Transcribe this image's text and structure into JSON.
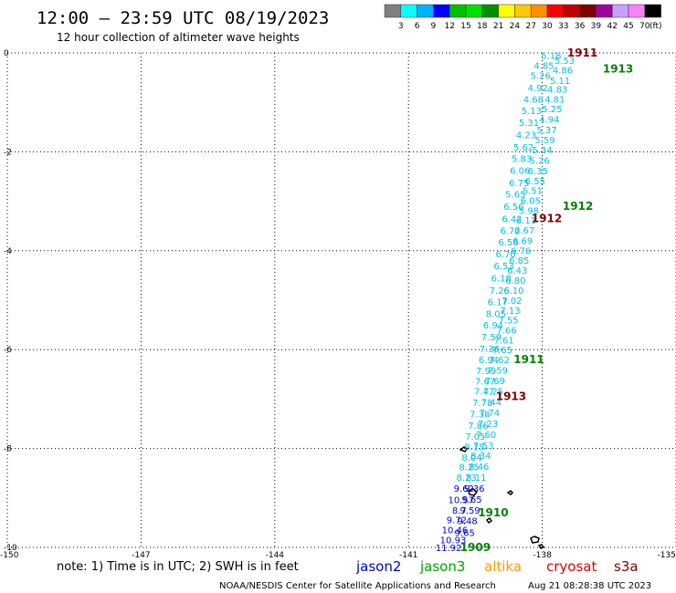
{
  "header": {
    "title": "12:00 — 23:59 UTC 08/19/2023",
    "subtitle": "12 hour collection of altimeter wave heights"
  },
  "colorbar": {
    "labels": [
      "3",
      "6",
      "9",
      "12",
      "15",
      "18",
      "21",
      "24",
      "27",
      "30",
      "33",
      "36",
      "39",
      "42",
      "45",
      "70"
    ],
    "unit": "(ft)",
    "colors": [
      "#808080",
      "#00ffff",
      "#00b0ff",
      "#0000ff",
      "#00c000",
      "#00e000",
      "#009000",
      "#ffff00",
      "#ffc800",
      "#ff9000",
      "#ff0000",
      "#c00000",
      "#800000",
      "#a000a0",
      "#c8a0ff",
      "#ff80ff",
      "#000000"
    ]
  },
  "footer": {
    "note": "note: 1) Time is in UTC; 2) SWH is in feet",
    "credit": "NOAA/NESDIS Center for Satellite Applications and Research",
    "timestamp": "Aug 21 08:28:38 UTC 2023"
  },
  "legend": [
    {
      "label": "jason2",
      "color": "#0000cc"
    },
    {
      "label": "jason3",
      "color": "#00a000"
    },
    {
      "label": "altika",
      "color": "#ff9900"
    },
    {
      "label": "cryosat",
      "color": "#dd0000"
    },
    {
      "label": "s3a",
      "color": "#800000"
    }
  ],
  "chart_data": {
    "type": "scatter",
    "x_ticks": [
      -150,
      -147,
      -144,
      -141,
      -138,
      -135
    ],
    "y_ticks": [
      0,
      -2,
      -4,
      -6,
      -8,
      -10
    ],
    "xlim": [
      -150,
      -135
    ],
    "ylim": [
      -10,
      0
    ],
    "grid": true,
    "point_color": "#00bfe0",
    "high_color": "#0000cc",
    "series": [
      {
        "values": [
          {
            "x": -137.8,
            "y": -0.05,
            "v": "5.18"
          },
          {
            "x": -137.96,
            "y": -0.25,
            "v": "4.85"
          },
          {
            "x": -138.04,
            "y": -0.45,
            "v": "5.26"
          },
          {
            "x": -138.1,
            "y": -0.7,
            "v": "4.92"
          },
          {
            "x": -138.2,
            "y": -0.93,
            "v": "4.68"
          },
          {
            "x": -138.24,
            "y": -1.16,
            "v": "5.13"
          },
          {
            "x": -138.3,
            "y": -1.4,
            "v": "5.31"
          },
          {
            "x": -138.36,
            "y": -1.65,
            "v": "4.23"
          },
          {
            "x": -138.42,
            "y": -1.9,
            "v": "5.62"
          },
          {
            "x": -138.46,
            "y": -2.13,
            "v": "5.83"
          },
          {
            "x": -138.5,
            "y": -2.37,
            "v": "6.06"
          },
          {
            "x": -138.52,
            "y": -2.62,
            "v": "6.75"
          },
          {
            "x": -138.6,
            "y": -2.85,
            "v": "5.65"
          },
          {
            "x": -138.64,
            "y": -3.1,
            "v": "6.56"
          },
          {
            "x": -138.68,
            "y": -3.35,
            "v": "6.42"
          },
          {
            "x": -138.72,
            "y": -3.59,
            "v": "6.72"
          },
          {
            "x": -138.76,
            "y": -3.82,
            "v": "6.56"
          },
          {
            "x": -138.82,
            "y": -4.06,
            "v": "6.70"
          },
          {
            "x": -138.86,
            "y": -4.3,
            "v": "6.53"
          },
          {
            "x": -138.92,
            "y": -4.55,
            "v": "6.18"
          },
          {
            "x": -138.96,
            "y": -4.8,
            "v": "7.26"
          },
          {
            "x": -139.0,
            "y": -5.03,
            "v": "6.17"
          },
          {
            "x": -139.04,
            "y": -5.27,
            "v": "8.05"
          },
          {
            "x": -139.1,
            "y": -5.5,
            "v": "6.94"
          },
          {
            "x": -139.14,
            "y": -5.74,
            "v": "7.59"
          },
          {
            "x": -139.18,
            "y": -5.98,
            "v": "7.36"
          },
          {
            "x": -139.2,
            "y": -6.2,
            "v": "6.94"
          },
          {
            "x": -139.26,
            "y": -6.42,
            "v": "7.99"
          },
          {
            "x": -139.28,
            "y": -6.63,
            "v": "7.67"
          },
          {
            "x": -139.3,
            "y": -6.84,
            "v": "7.47"
          },
          {
            "x": -139.34,
            "y": -7.07,
            "v": "7.78"
          },
          {
            "x": -139.4,
            "y": -7.3,
            "v": "7.38"
          },
          {
            "x": -139.44,
            "y": -7.53,
            "v": "7.86"
          },
          {
            "x": -139.5,
            "y": -7.75,
            "v": "7.05"
          },
          {
            "x": -139.52,
            "y": -7.96,
            "v": "8.15"
          },
          {
            "x": -139.58,
            "y": -8.17,
            "v": "8.04"
          },
          {
            "x": -139.64,
            "y": -8.37,
            "v": "8.25"
          },
          {
            "x": -139.7,
            "y": -8.58,
            "v": "8.23"
          },
          {
            "x": -139.76,
            "y": -8.8,
            "v": "9.62"
          },
          {
            "x": -139.82,
            "y": -9.03,
            "v": "10.57"
          },
          {
            "x": -139.86,
            "y": -9.24,
            "v": "8.7"
          },
          {
            "x": -139.92,
            "y": -9.44,
            "v": "9.72"
          },
          {
            "x": -139.96,
            "y": -9.64,
            "v": "10.46"
          },
          {
            "x": -140.0,
            "y": -9.84,
            "v": "10.93"
          },
          {
            "x": -140.1,
            "y": -10.0,
            "v": "11.92"
          },
          {
            "x": -137.5,
            "y": -0.15,
            "v": "5.53"
          },
          {
            "x": -137.54,
            "y": -0.34,
            "v": "4.86"
          },
          {
            "x": -137.6,
            "y": -0.55,
            "v": "5.11"
          },
          {
            "x": -137.66,
            "y": -0.73,
            "v": "4.83"
          },
          {
            "x": -137.72,
            "y": -0.93,
            "v": "4.81"
          },
          {
            "x": -137.78,
            "y": -1.13,
            "v": "5.25"
          },
          {
            "x": -137.84,
            "y": -1.34,
            "v": "4.94"
          },
          {
            "x": -137.9,
            "y": -1.55,
            "v": "5.37"
          },
          {
            "x": -137.94,
            "y": -1.75,
            "v": "5.59"
          },
          {
            "x": -138.0,
            "y": -1.96,
            "v": "5.34"
          },
          {
            "x": -138.06,
            "y": -2.17,
            "v": "5.26"
          },
          {
            "x": -138.1,
            "y": -2.38,
            "v": "6.35"
          },
          {
            "x": -138.16,
            "y": -2.58,
            "v": "6.55"
          },
          {
            "x": -138.22,
            "y": -2.78,
            "v": "5.51"
          },
          {
            "x": -138.26,
            "y": -2.98,
            "v": "6.05"
          },
          {
            "x": -138.3,
            "y": -3.18,
            "v": "5.98"
          },
          {
            "x": -138.36,
            "y": -3.38,
            "v": "6.11"
          },
          {
            "x": -138.4,
            "y": -3.58,
            "v": "6.67"
          },
          {
            "x": -138.44,
            "y": -3.79,
            "v": "6.69"
          },
          {
            "x": -138.48,
            "y": -3.99,
            "v": "6.76"
          },
          {
            "x": -138.52,
            "y": -4.19,
            "v": "6.85"
          },
          {
            "x": -138.56,
            "y": -4.39,
            "v": "6.43"
          },
          {
            "x": -138.6,
            "y": -4.59,
            "v": "6.80"
          },
          {
            "x": -138.64,
            "y": -4.8,
            "v": "6.10"
          },
          {
            "x": -138.68,
            "y": -5.0,
            "v": "7.02"
          },
          {
            "x": -138.72,
            "y": -5.2,
            "v": "7.13"
          },
          {
            "x": -138.76,
            "y": -5.4,
            "v": "7.55"
          },
          {
            "x": -138.8,
            "y": -5.6,
            "v": "7.66"
          },
          {
            "x": -138.86,
            "y": -5.8,
            "v": "7.61"
          },
          {
            "x": -138.9,
            "y": -6.0,
            "v": "7.65"
          },
          {
            "x": -138.96,
            "y": -6.2,
            "v": "7.62"
          },
          {
            "x": -139.0,
            "y": -6.41,
            "v": "7.59"
          },
          {
            "x": -139.06,
            "y": -6.62,
            "v": "7.69"
          },
          {
            "x": -139.1,
            "y": -6.84,
            "v": "7.25"
          },
          {
            "x": -139.14,
            "y": -7.06,
            "v": "7.44"
          },
          {
            "x": -139.18,
            "y": -7.27,
            "v": "7.74"
          },
          {
            "x": -139.22,
            "y": -7.49,
            "v": "7.23"
          },
          {
            "x": -139.26,
            "y": -7.71,
            "v": "7.60"
          },
          {
            "x": -139.32,
            "y": -7.93,
            "v": "7.53"
          },
          {
            "x": -139.38,
            "y": -8.14,
            "v": "8.34"
          },
          {
            "x": -139.42,
            "y": -8.36,
            "v": "8.46"
          },
          {
            "x": -139.48,
            "y": -8.58,
            "v": "8.11"
          },
          {
            "x": -139.52,
            "y": -8.8,
            "v": "9.36"
          },
          {
            "x": -139.58,
            "y": -9.02,
            "v": "9.65"
          },
          {
            "x": -139.62,
            "y": -9.24,
            "v": "9.59"
          },
          {
            "x": -139.68,
            "y": -9.46,
            "v": "9.48"
          },
          {
            "x": -139.74,
            "y": -9.7,
            "v": "9.65"
          }
        ]
      }
    ],
    "time_labels": [
      {
        "text": "1911",
        "x": -137.1,
        "y": 0.0,
        "color": "#800000"
      },
      {
        "text": "1913",
        "x": -136.3,
        "y": -0.32,
        "color": "#008000"
      },
      {
        "text": "1912",
        "x": -137.2,
        "y": -3.1,
        "color": "#008000"
      },
      {
        "text": "1912",
        "x": -137.9,
        "y": -3.35,
        "color": "#800000"
      },
      {
        "text": "1911",
        "x": -138.3,
        "y": -6.2,
        "color": "#008000"
      },
      {
        "text": "1913",
        "x": -138.7,
        "y": -6.95,
        "color": "#800000"
      },
      {
        "text": "1910",
        "x": -139.1,
        "y": -9.3,
        "color": "#008000"
      },
      {
        "text": "1909",
        "x": -139.5,
        "y": -10.0,
        "color": "#008000"
      }
    ]
  }
}
